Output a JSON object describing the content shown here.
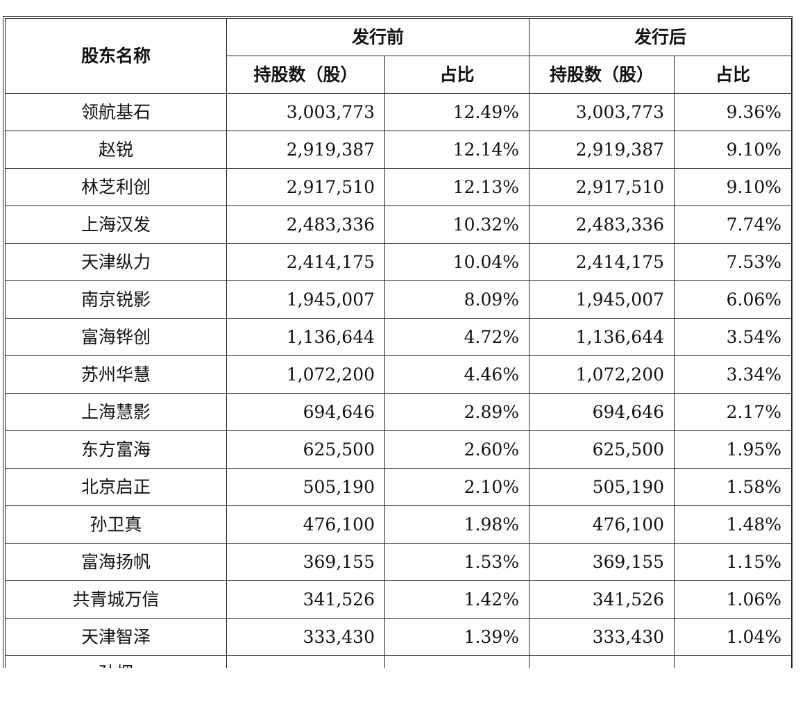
{
  "header": {
    "col_name": "股东名称",
    "group_before": "发行前",
    "group_after": "发行后",
    "shares_label": "持股数（股）",
    "ratio_label": "占比"
  },
  "rows": [
    {
      "name": "领航基石",
      "before_shares": "3,003,773",
      "before_ratio": "12.49%",
      "after_shares": "3,003,773",
      "after_ratio": "9.36%"
    },
    {
      "name": "赵锐",
      "before_shares": "2,919,387",
      "before_ratio": "12.14%",
      "after_shares": "2,919,387",
      "after_ratio": "9.10%"
    },
    {
      "name": "林芝利创",
      "before_shares": "2,917,510",
      "before_ratio": "12.13%",
      "after_shares": "2,917,510",
      "after_ratio": "9.10%"
    },
    {
      "name": "上海汉发",
      "before_shares": "2,483,336",
      "before_ratio": "10.32%",
      "after_shares": "2,483,336",
      "after_ratio": "7.74%"
    },
    {
      "name": "天津纵力",
      "before_shares": "2,414,175",
      "before_ratio": "10.04%",
      "after_shares": "2,414,175",
      "after_ratio": "7.53%"
    },
    {
      "name": "南京锐影",
      "before_shares": "1,945,007",
      "before_ratio": "8.09%",
      "after_shares": "1,945,007",
      "after_ratio": "6.06%"
    },
    {
      "name": "富海铧创",
      "before_shares": "1,136,644",
      "before_ratio": "4.72%",
      "after_shares": "1,136,644",
      "after_ratio": "3.54%"
    },
    {
      "name": "苏州华慧",
      "before_shares": "1,072,200",
      "before_ratio": "4.46%",
      "after_shares": "1,072,200",
      "after_ratio": "3.34%"
    },
    {
      "name": "上海慧影",
      "before_shares": "694,646",
      "before_ratio": "2.89%",
      "after_shares": "694,646",
      "after_ratio": "2.17%"
    },
    {
      "name": "东方富海",
      "before_shares": "625,500",
      "before_ratio": "2.60%",
      "after_shares": "625,500",
      "after_ratio": "1.95%"
    },
    {
      "name": "北京启正",
      "before_shares": "505,190",
      "before_ratio": "2.10%",
      "after_shares": "505,190",
      "after_ratio": "1.58%"
    },
    {
      "name": "孙卫真",
      "before_shares": "476,100",
      "before_ratio": "1.98%",
      "after_shares": "476,100",
      "after_ratio": "1.48%"
    },
    {
      "name": "富海扬帆",
      "before_shares": "369,155",
      "before_ratio": "1.53%",
      "after_shares": "369,155",
      "after_ratio": "1.15%"
    },
    {
      "name": "共青城万信",
      "before_shares": "341,526",
      "before_ratio": "1.42%",
      "after_shares": "341,526",
      "after_ratio": "1.06%"
    },
    {
      "name": "天津智泽",
      "before_shares": "333,430",
      "before_ratio": "1.39%",
      "after_shares": "333,430",
      "after_ratio": "1.04%"
    }
  ],
  "partial_row": {
    "name": "孙烟"
  }
}
